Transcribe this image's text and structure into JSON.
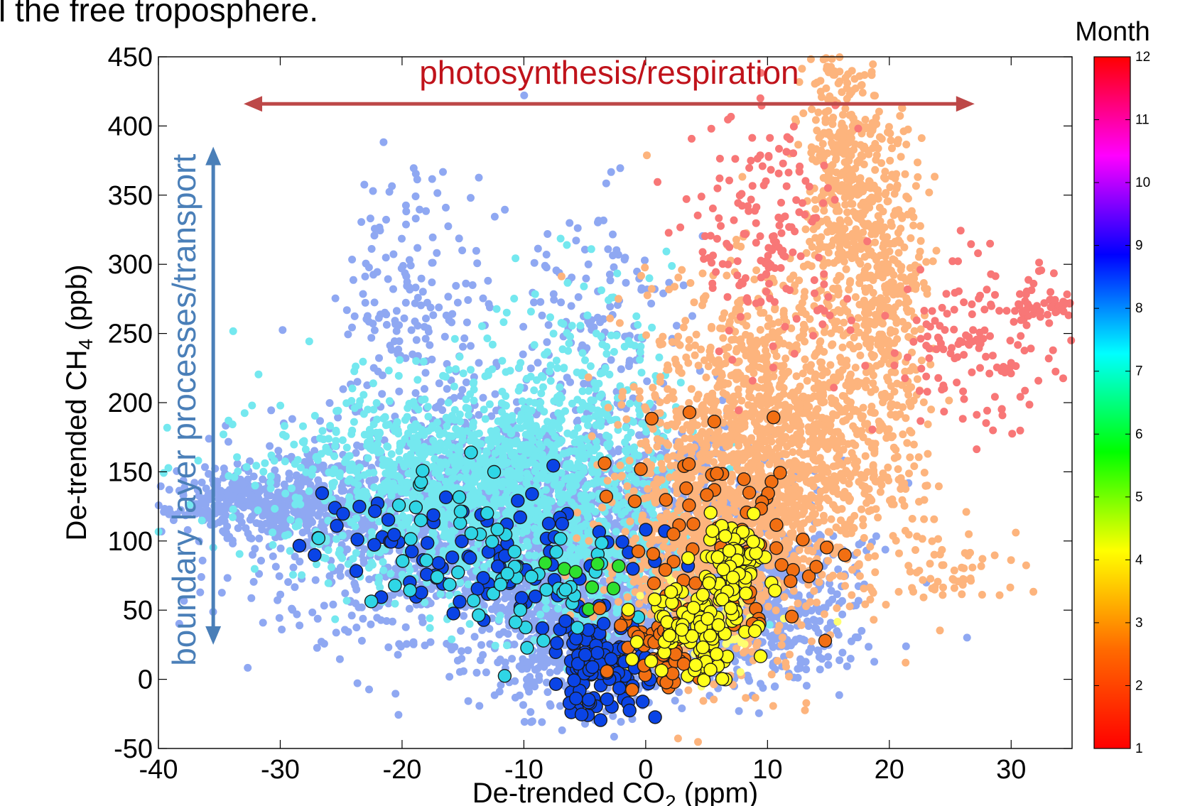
{
  "page": {
    "heading": "l the free troposphere."
  },
  "chart_data": {
    "type": "scatter",
    "xlabel": "De-trended CO",
    "xlabel_sub": "2",
    "xlabel_unit": " (ppm)",
    "ylabel": "De-trended CH",
    "ylabel_sub": "4",
    "ylabel_unit": " (ppb)",
    "xlim": [
      -40,
      35
    ],
    "ylim": [
      -50,
      450
    ],
    "xticks": [
      -40,
      -30,
      -20,
      -10,
      0,
      10,
      20,
      30
    ],
    "yticks": [
      -50,
      0,
      50,
      100,
      150,
      200,
      250,
      300,
      350,
      400,
      450
    ],
    "grid": false,
    "colorbar": {
      "title": "Month",
      "range": [
        1,
        12
      ],
      "ticks": [
        1,
        2,
        3,
        4,
        5,
        6,
        7,
        8,
        9,
        10,
        11,
        12
      ],
      "colormap": [
        "#ff0000",
        "#ff6a00",
        "#ffff00",
        "#00ff00",
        "#00ffff",
        "#0000ff",
        "#ff00ff",
        "#ff0000"
      ]
    },
    "annotations": [
      {
        "text": "photosynthesis/respiration",
        "color": "#c0131b",
        "arrow": "horizontal",
        "x_from": -33,
        "x_to": 27,
        "y": 416
      },
      {
        "text": "boundary layer processes/transport",
        "color": "#4a7fb8",
        "arrow": "vertical",
        "x": -35.5,
        "y_from": 25,
        "y_to": 385
      }
    ],
    "series": [
      {
        "color": "#8fa8f2",
        "month_group": "8 (light)",
        "marker": "small",
        "clusters": [
          {
            "cx": -10,
            "cy": 110,
            "sx": 10,
            "sy": 40,
            "n": 2400
          },
          {
            "cx": -4,
            "cy": 40,
            "sx": 4,
            "sy": 30,
            "n": 900
          },
          {
            "cx": -30,
            "cy": 128,
            "sx": 5,
            "sy": 12,
            "n": 450
          },
          {
            "cx": -19,
            "cy": 270,
            "sx": 3,
            "sy": 50,
            "n": 180
          },
          {
            "cx": -5,
            "cy": 240,
            "sx": 4,
            "sy": 60,
            "n": 180
          },
          {
            "cx": 9,
            "cy": 60,
            "sx": 4,
            "sy": 25,
            "n": 450
          },
          {
            "cx": 5,
            "cy": 25,
            "sx": 6,
            "sy": 15,
            "n": 250
          }
        ]
      },
      {
        "color": "#74e8ef",
        "month_group": "6-7 (light)",
        "marker": "small",
        "clusters": [
          {
            "cx": -15,
            "cy": 140,
            "sx": 8,
            "sy": 35,
            "n": 1300
          },
          {
            "cx": -6,
            "cy": 190,
            "sx": 4,
            "sy": 50,
            "n": 300
          },
          {
            "cx": -5,
            "cy": 80,
            "sx": 5,
            "sy": 30,
            "n": 350
          }
        ]
      },
      {
        "color": "#fdb47d",
        "month_group": "2 (light)",
        "marker": "small",
        "clusters": [
          {
            "cx": 10,
            "cy": 165,
            "sx": 5,
            "sy": 60,
            "n": 1600
          },
          {
            "cx": 16,
            "cy": 360,
            "sx": 1.5,
            "sy": 60,
            "n": 420
          },
          {
            "cx": 20,
            "cy": 280,
            "sx": 1.5,
            "sy": 60,
            "n": 380
          },
          {
            "cx": 4,
            "cy": 90,
            "sx": 4,
            "sy": 40,
            "n": 500
          },
          {
            "cx": 25,
            "cy": 80,
            "sx": 4,
            "sy": 15,
            "n": 60
          }
        ]
      },
      {
        "color": "#f87777",
        "month_group": "1 (light)",
        "marker": "small",
        "clusters": [
          {
            "cx": 10,
            "cy": 320,
            "sx": 3,
            "sy": 45,
            "n": 170
          },
          {
            "cx": 27,
            "cy": 240,
            "sx": 4,
            "sy": 30,
            "n": 150
          },
          {
            "cx": 33,
            "cy": 268,
            "sx": 2,
            "sy": 6,
            "n": 50
          }
        ]
      },
      {
        "color": "#ffff70",
        "month_group": "3 (light)",
        "marker": "small",
        "clusters": [
          {
            "cx": 5,
            "cy": 40,
            "sx": 3,
            "sy": 20,
            "n": 60
          }
        ]
      },
      {
        "color": "#0a44e6",
        "month_group": "8 (bold)",
        "marker": "large",
        "clusters": [
          {
            "cx": -4,
            "cy": 10,
            "sx": 2,
            "sy": 18,
            "n": 110
          },
          {
            "cx": -10,
            "cy": 90,
            "sx": 6,
            "sy": 25,
            "n": 70
          },
          {
            "cx": -20,
            "cy": 110,
            "sx": 4,
            "sy": 20,
            "n": 25
          }
        ]
      },
      {
        "color": "#2fd6e6",
        "month_group": "6-7 (bold)",
        "marker": "large",
        "clusters": [
          {
            "cx": -15,
            "cy": 100,
            "sx": 6,
            "sy": 30,
            "n": 35
          },
          {
            "cx": -8,
            "cy": 50,
            "sx": 3,
            "sy": 20,
            "n": 25
          }
        ]
      },
      {
        "color": "#2ee02e",
        "month_group": "4-5 (bold)",
        "marker": "large",
        "clusters": [
          {
            "cx": -4,
            "cy": 80,
            "sx": 2,
            "sy": 10,
            "n": 8
          }
        ]
      },
      {
        "color": "#f26f12",
        "month_group": "2 (bold)",
        "marker": "large",
        "clusters": [
          {
            "cx": 6,
            "cy": 90,
            "sx": 5,
            "sy": 40,
            "n": 90
          },
          {
            "cx": 1.5,
            "cy": 20,
            "sx": 1.5,
            "sy": 15,
            "n": 45
          }
        ]
      },
      {
        "color": "#ffff1a",
        "month_group": "3 (bold)",
        "marker": "large",
        "clusters": [
          {
            "cx": 7,
            "cy": 85,
            "sx": 1.5,
            "sy": 15,
            "n": 70
          },
          {
            "cx": 4,
            "cy": 40,
            "sx": 2,
            "sy": 20,
            "n": 90
          }
        ]
      }
    ]
  }
}
